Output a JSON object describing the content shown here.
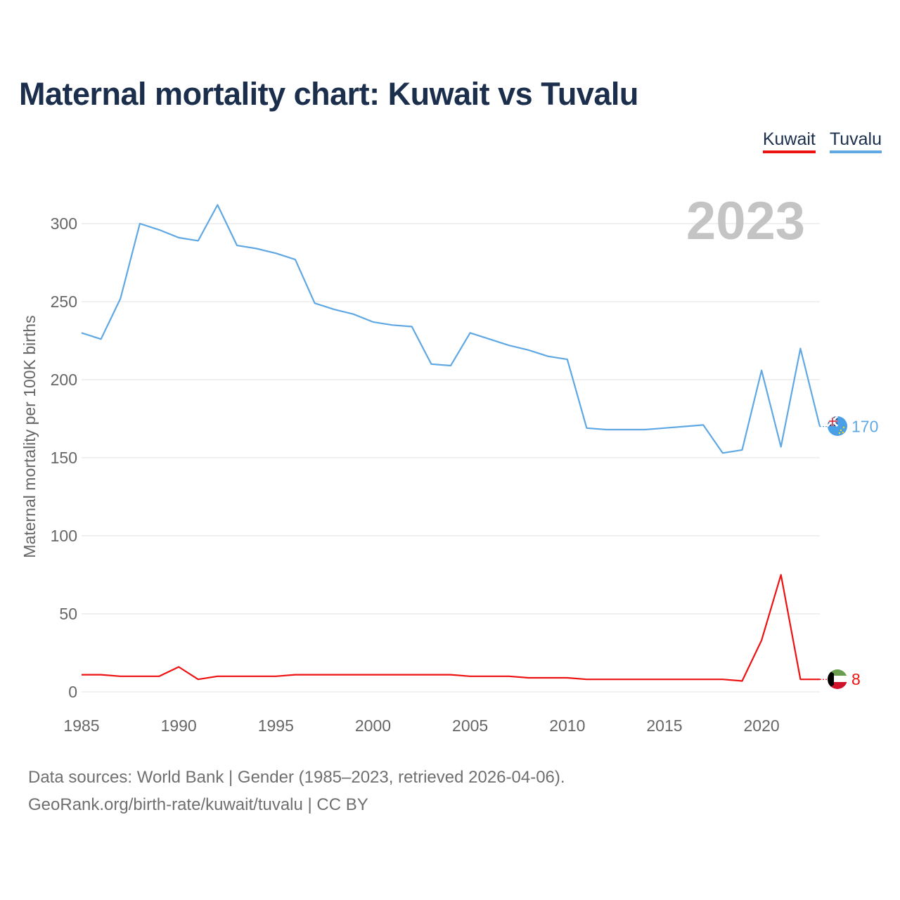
{
  "title": "Maternal mortality chart: Kuwait vs Tuvalu",
  "legend": {
    "kuwait": "Kuwait",
    "tuvalu": "Tuvalu"
  },
  "year_watermark": "2023",
  "footer": {
    "line1": "Data sources: World Bank | Gender (1985–2023, retrieved 2026-04-06).",
    "line2": "GeoRank.org/birth-rate/kuwait/tuvalu | CC BY"
  },
  "colors": {
    "kuwait": "#ee1111",
    "tuvalu": "#5fa8e4",
    "title": "#1b2f4d"
  },
  "chart_data": {
    "type": "line",
    "title": "Maternal mortality chart: Kuwait vs Tuvalu",
    "xlabel": "",
    "ylabel": "Maternal mortality per 100K births",
    "xlim": [
      1985,
      2023
    ],
    "ylim": [
      0,
      320
    ],
    "yticks": [
      0,
      50,
      100,
      150,
      200,
      250,
      300
    ],
    "xticks": [
      1985,
      1990,
      1995,
      2000,
      2005,
      2010,
      2015,
      2020
    ],
    "grid": true,
    "legend": "top-right",
    "x": [
      1985,
      1986,
      1987,
      1988,
      1989,
      1990,
      1991,
      1992,
      1993,
      1994,
      1995,
      1996,
      1997,
      1998,
      1999,
      2000,
      2001,
      2002,
      2003,
      2004,
      2005,
      2006,
      2007,
      2008,
      2009,
      2010,
      2011,
      2012,
      2013,
      2014,
      2015,
      2016,
      2017,
      2018,
      2019,
      2020,
      2021,
      2022,
      2023
    ],
    "series": [
      {
        "name": "Kuwait",
        "color": "#ee1111",
        "end_label": "8",
        "values": [
          11,
          11,
          10,
          10,
          10,
          16,
          8,
          10,
          10,
          10,
          10,
          11,
          11,
          11,
          11,
          11,
          11,
          11,
          11,
          11,
          10,
          10,
          10,
          9,
          9,
          9,
          8,
          8,
          8,
          8,
          8,
          8,
          8,
          8,
          7,
          33,
          75,
          8,
          8
        ]
      },
      {
        "name": "Tuvalu",
        "color": "#5fa8e4",
        "end_label": "170",
        "values": [
          230,
          226,
          252,
          300,
          296,
          291,
          289,
          312,
          286,
          284,
          281,
          277,
          249,
          245,
          242,
          237,
          235,
          234,
          210,
          209,
          230,
          226,
          222,
          219,
          215,
          213,
          169,
          168,
          168,
          168,
          169,
          170,
          171,
          153,
          155,
          206,
          157,
          220,
          170
        ]
      }
    ]
  }
}
